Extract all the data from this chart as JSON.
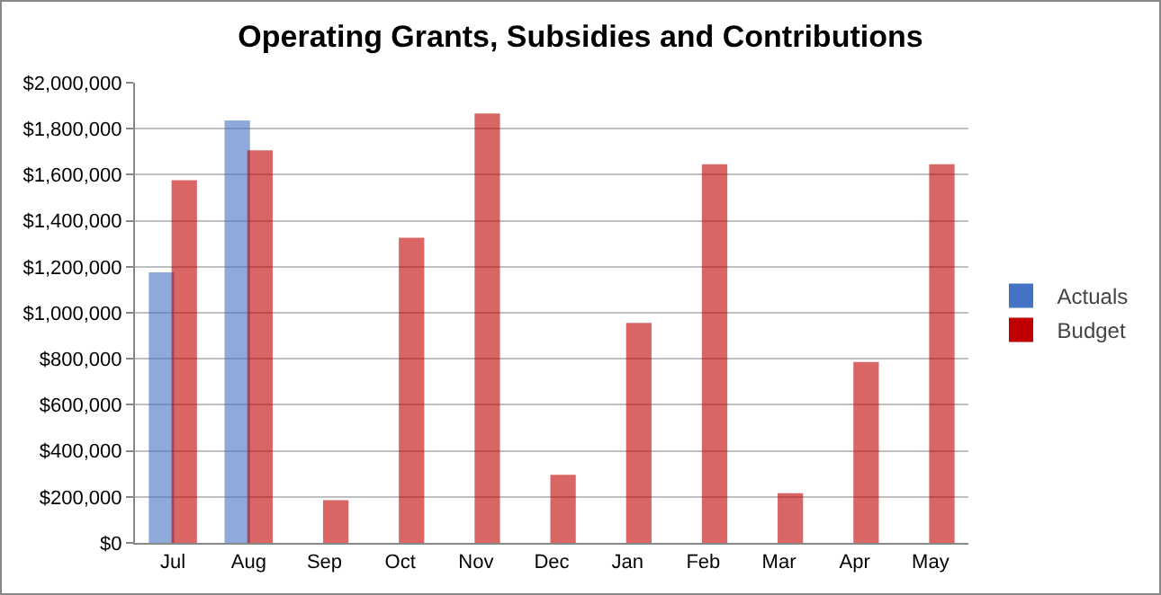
{
  "chart_data": {
    "type": "bar",
    "title": "Operating Grants, Subsidies and Contributions",
    "categories": [
      "Jul",
      "Aug",
      "Sep",
      "Oct",
      "Nov",
      "Dec",
      "Jan",
      "Feb",
      "Mar",
      "Apr",
      "May"
    ],
    "series": [
      {
        "name": "Actuals",
        "color": "#4472c4",
        "values": [
          1170000,
          1830000,
          null,
          null,
          null,
          null,
          null,
          null,
          null,
          null,
          null
        ]
      },
      {
        "name": "Budget",
        "color": "#c00000",
        "values": [
          1570000,
          1700000,
          180000,
          1320000,
          1860000,
          290000,
          950000,
          1640000,
          210000,
          780000,
          1640000
        ]
      }
    ],
    "ylim": [
      0,
      2000000
    ],
    "yticks": [
      {
        "value": 0,
        "label": "$0"
      },
      {
        "value": 200000,
        "label": "$200,000"
      },
      {
        "value": 400000,
        "label": "$400,000"
      },
      {
        "value": 600000,
        "label": "$600,000"
      },
      {
        "value": 800000,
        "label": "$800,000"
      },
      {
        "value": 1000000,
        "label": "$1,000,000"
      },
      {
        "value": 1200000,
        "label": "$1,200,000"
      },
      {
        "value": 1400000,
        "label": "$1,400,000"
      },
      {
        "value": 1600000,
        "label": "$1,600,000"
      },
      {
        "value": 1800000,
        "label": "$1,800,000"
      },
      {
        "value": 2000000,
        "label": "$2,000,000"
      }
    ],
    "grid": "y",
    "legend": "right"
  }
}
